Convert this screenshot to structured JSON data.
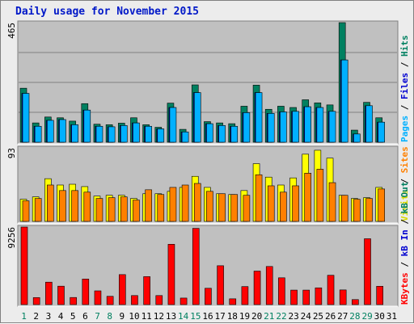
{
  "chart_data": {
    "type": "bar",
    "title": "Daily usage for November 2015",
    "days": [
      "1",
      "2",
      "3",
      "4",
      "5",
      "6",
      "7",
      "8",
      "9",
      "10",
      "11",
      "12",
      "13",
      "14",
      "15",
      "16",
      "17",
      "18",
      "19",
      "20",
      "21",
      "22",
      "23",
      "24",
      "25",
      "26",
      "27",
      "28",
      "29",
      "30",
      "31"
    ],
    "weekend_days": [
      "1",
      "7",
      "8",
      "14",
      "15",
      "21",
      "22",
      "28",
      "29"
    ],
    "panels": [
      {
        "id": "hits-files-pages",
        "ymax_label": "465",
        "ymax": 465,
        "series": [
          {
            "name": "Hits",
            "color": "#008060",
            "values": [
              210,
              75,
              98,
              95,
              82,
              150,
              70,
              68,
              74,
              95,
              68,
              58,
              152,
              50,
              223,
              80,
              75,
              72,
              140,
              222,
              128,
              140,
              135,
              165,
              153,
              145,
              465,
              47,
              155,
              95,
              0
            ]
          },
          {
            "name": "Files",
            "color": "#0000d0",
            "values": [
              190,
              62,
              85,
              88,
              68,
              125,
              62,
              60,
              65,
              75,
              62,
              52,
              135,
              40,
              193,
              72,
              65,
              62,
              115,
              193,
              112,
              118,
              120,
              138,
              135,
              120,
              320,
              32,
              142,
              78,
              0
            ]
          },
          {
            "name": "Pages",
            "color": "#00b0ff",
            "values": [
              190,
              62,
              85,
              88,
              68,
              125,
              62,
              60,
              65,
              75,
              62,
              52,
              135,
              40,
              193,
              72,
              65,
              62,
              115,
              193,
              112,
              118,
              120,
              138,
              135,
              120,
              320,
              32,
              142,
              78,
              0
            ]
          }
        ],
        "right_labels": [
          {
            "text": "Pages",
            "color": "#00b0ff"
          },
          {
            "text": " / ",
            "color": "#000000"
          },
          {
            "text": "Files",
            "color": "#0000d0"
          },
          {
            "text": " / ",
            "color": "#000000"
          },
          {
            "text": "Hits",
            "color": "#008060"
          }
        ]
      },
      {
        "id": "sites-visits",
        "ymax_label": "93",
        "ymax": 93,
        "series": [
          {
            "name": "Visits",
            "color": "#ffff00",
            "values": [
              28,
              31,
              54,
              46,
              47,
              44,
              32,
              33,
              33,
              29,
              35,
              35,
              38,
              43,
              57,
              43,
              35,
              34,
              39,
              73,
              56,
              46,
              55,
              85,
              90,
              80,
              33,
              29,
              30,
              43,
              0
            ]
          },
          {
            "name": "Sites",
            "color": "#ff8000",
            "values": [
              26,
              29,
              46,
              39,
              39,
              37,
              29,
              30,
              31,
              27,
              40,
              34,
              43,
              46,
              48,
              38,
              35,
              34,
              33,
              59,
              45,
              37,
              45,
              61,
              66,
              49,
              33,
              28,
              29,
              41,
              0
            ]
          }
        ],
        "right_labels": [
          {
            "text": "Visits",
            "color": "#d8d800"
          },
          {
            "text": " / ",
            "color": "#000000"
          },
          {
            "text": "Sites",
            "color": "#ff8000"
          }
        ]
      },
      {
        "id": "kbytes",
        "ymax_label": "9256",
        "ymax": 9256,
        "series": [
          {
            "name": "KBytes",
            "color": "#ff0000",
            "values": [
              9256,
              840,
              2680,
              2200,
              850,
              3050,
              1640,
              990,
              3580,
              1080,
              3340,
              1080,
              7200,
              780,
              9100,
              1950,
              4640,
              690,
              2150,
              4000,
              4550,
              3200,
              1730,
              1730,
              2000,
              3500,
              1750,
              600,
              7860,
              2190,
              0
            ]
          }
        ],
        "right_labels": [
          {
            "text": "KBytes",
            "color": "#ff0000"
          },
          {
            "text": " / ",
            "color": "#000000"
          },
          {
            "text": "kB In",
            "color": "#0000d0"
          },
          {
            "text": " / ",
            "color": "#000000"
          },
          {
            "text": "kB Out",
            "color": "#008060"
          }
        ]
      }
    ]
  }
}
